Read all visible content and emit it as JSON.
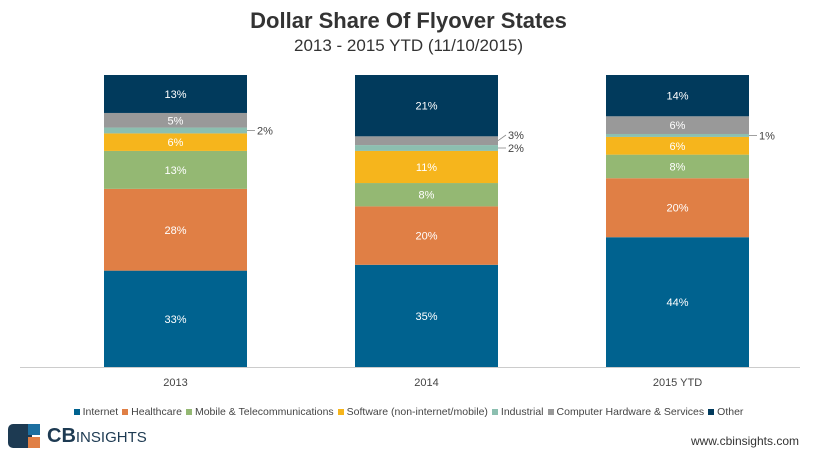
{
  "chart_data": {
    "type": "bar",
    "stacked": true,
    "title": "Dollar Share Of Flyover States",
    "subtitle": "2013 - 2015 YTD (11/10/2015)",
    "categories": [
      "2013",
      "2014",
      "2015 YTD"
    ],
    "series": [
      {
        "name": "Internet",
        "color": "#00628f",
        "values": [
          33,
          35,
          44
        ]
      },
      {
        "name": "Healthcare",
        "color": "#e07f45",
        "values": [
          28,
          20,
          20
        ]
      },
      {
        "name": "Mobile & Telecommunications",
        "color": "#94b873",
        "values": [
          13,
          8,
          8
        ]
      },
      {
        "name": "Software (non-internet/mobile)",
        "color": "#f6b51c",
        "values": [
          6,
          11,
          6
        ]
      },
      {
        "name": "Industrial",
        "color": "#8cbfb0",
        "values": [
          2,
          2,
          1
        ]
      },
      {
        "name": "Computer Hardware & Services",
        "color": "#999999",
        "values": [
          5,
          3,
          6
        ]
      },
      {
        "name": "Other",
        "color": "#013a5c",
        "values": [
          13,
          21,
          14
        ]
      }
    ],
    "legend_position": "bottom",
    "grid": false
  },
  "footer": {
    "logo_text_bold": "CB",
    "logo_text": "INSIGHTS",
    "url": "www.cbinsights.com"
  }
}
